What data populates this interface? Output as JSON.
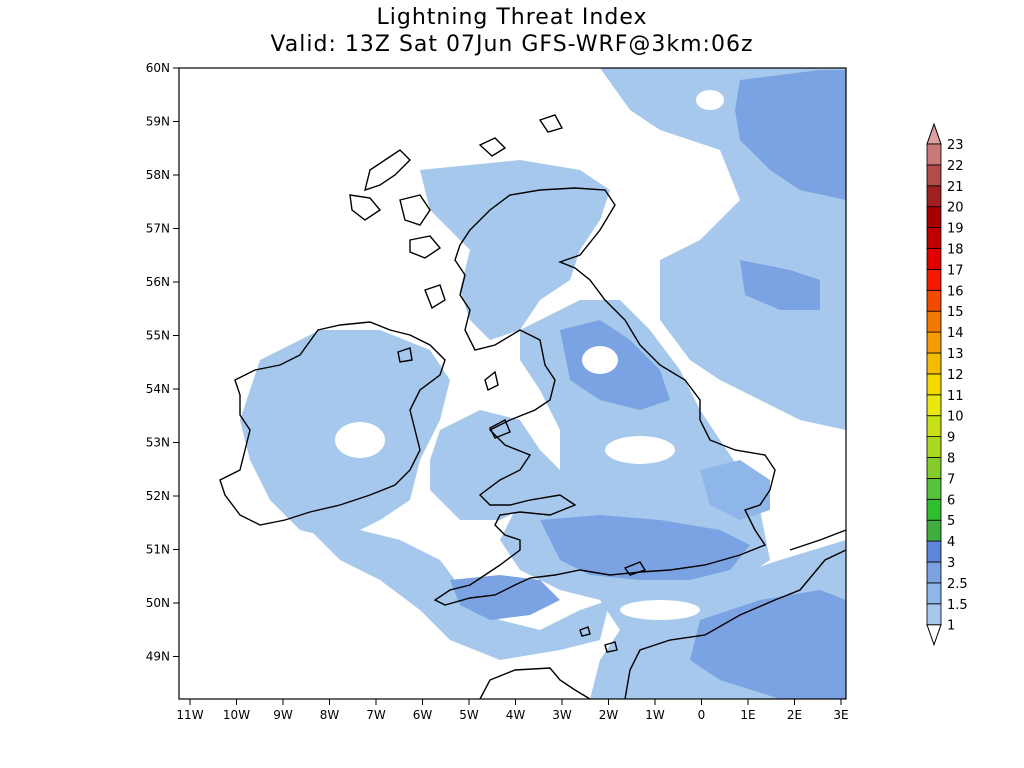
{
  "title": {
    "line1": "Lightning Threat Index",
    "line2": "Valid: 13Z Sat 07Jun GFS-WRF@3km:06z"
  },
  "axes": {
    "lat_labels": [
      "60N",
      "59N",
      "58N",
      "57N",
      "56N",
      "55N",
      "54N",
      "53N",
      "52N",
      "51N",
      "50N",
      "49N"
    ],
    "lon_labels": [
      "11W",
      "10W",
      "9W",
      "8W",
      "7W",
      "6W",
      "5W",
      "4W",
      "3W",
      "2W",
      "1W",
      "0",
      "1E",
      "2E",
      "3E"
    ]
  },
  "legend": {
    "levels": [
      "1",
      "1.5",
      "2.5",
      "3",
      "4",
      "5",
      "6",
      "7",
      "8",
      "9",
      "10",
      "11",
      "12",
      "13",
      "14",
      "15",
      "16",
      "17",
      "18",
      "19",
      "20",
      "21",
      "22",
      "23"
    ],
    "colors": [
      "#a6c8ec",
      "#8fb6e8",
      "#7ba2e2",
      "#5f86da",
      "#3fae3f",
      "#2fbf2f",
      "#55c43a",
      "#84cc2a",
      "#a8d81f",
      "#c8e018",
      "#e8e810",
      "#f4d800",
      "#f4bc00",
      "#f49c00",
      "#f47800",
      "#f44a00",
      "#f41a00",
      "#e00000",
      "#c00000",
      "#a80000",
      "#a02020",
      "#b44a4a",
      "#c87878",
      "#dca0a0"
    ]
  }
}
